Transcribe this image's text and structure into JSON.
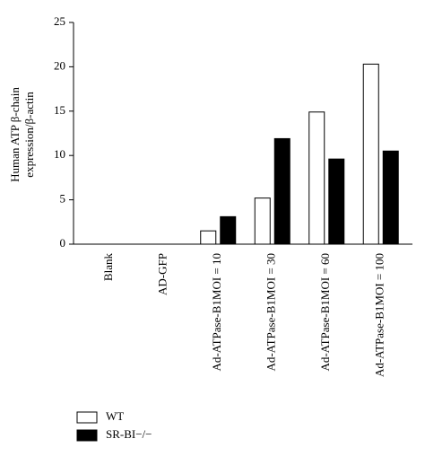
{
  "chart_data": {
    "type": "bar",
    "ylabel": [
      "Human ATP β-chain",
      "expression/β-actin"
    ],
    "categories": [
      "Blank",
      "AD-GFP",
      "Ad-ATPase-B1MOI = 10",
      "Ad-ATPase-B1MOI = 30",
      "Ad-ATPase-B1MOI = 60",
      "Ad-ATPase-B1MOI = 100"
    ],
    "series": [
      {
        "name": "WT",
        "color": "#ffffff",
        "values": [
          0,
          0,
          1.5,
          5.2,
          14.9,
          20.3
        ]
      },
      {
        "name": "SR-BI−/−",
        "color": "#000000",
        "values": [
          0,
          0,
          3.1,
          11.9,
          9.6,
          10.5
        ]
      }
    ],
    "ylim": [
      0,
      25
    ],
    "yticks": [
      0,
      5,
      10,
      15,
      20,
      25
    ],
    "grid": false,
    "legend": "bottom-left"
  }
}
